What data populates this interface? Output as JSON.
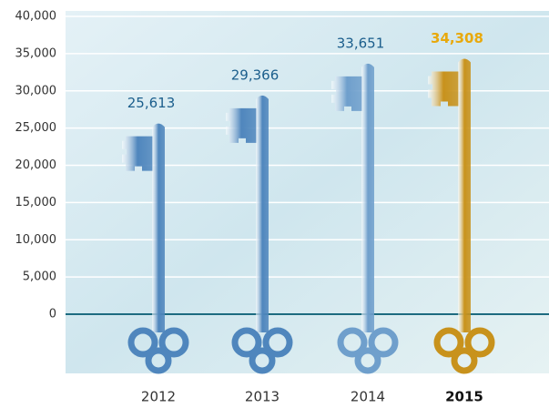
{
  "chart_data": {
    "type": "key-bar",
    "categories": [
      "2012",
      "2013",
      "2014",
      "2015"
    ],
    "values": [
      25613,
      29366,
      33651,
      34308
    ],
    "value_labels": [
      "25,613",
      "29,366",
      "33,651",
      "34,308"
    ],
    "colors": [
      "#4f86bd",
      "#4f86bd",
      "#6f9fcc",
      "#c8921c"
    ],
    "label_colors": [
      "#1b5e8c",
      "#1b5e8c",
      "#1b5e8c",
      "#e8a90c"
    ],
    "highlight_index": 3,
    "ylim": [
      0,
      40000
    ],
    "yticks": [
      0,
      {
        "value": 5000,
        "label": "5,000"
      },
      {
        "value": 10000,
        "label": "10,000"
      },
      {
        "value": 15000,
        "label": "15,000"
      },
      {
        "value": 20000,
        "label": "20,000"
      },
      {
        "value": 25000,
        "label": "25,000"
      },
      {
        "value": 30000,
        "label": "30,000"
      },
      {
        "value": 35000,
        "label": "35,000"
      },
      {
        "value": 40000,
        "label": "40,000"
      }
    ],
    "grid": true
  }
}
